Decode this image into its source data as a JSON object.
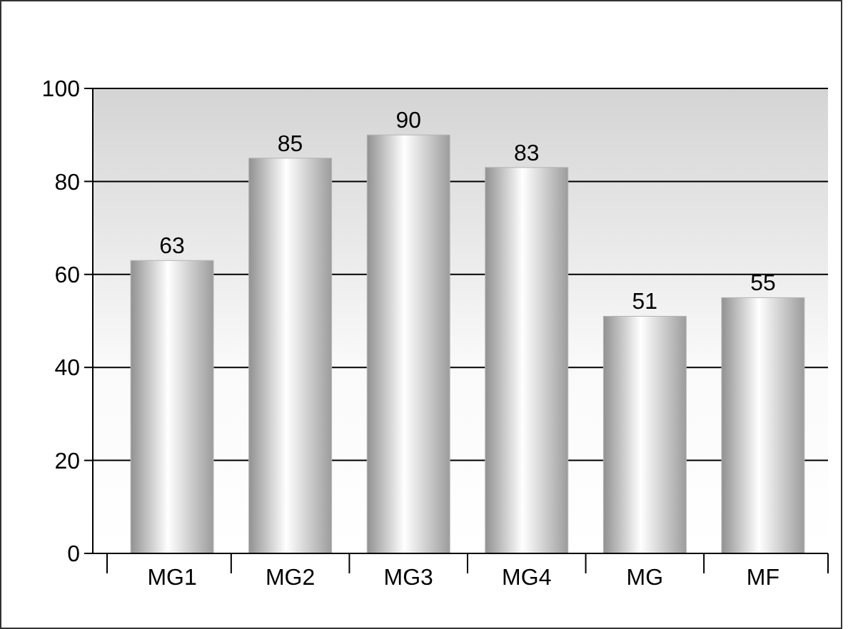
{
  "chart_data": {
    "type": "bar",
    "categories": [
      "MG1",
      "MG2",
      "MG3",
      "MG4",
      "MG",
      "MF"
    ],
    "values": [
      63,
      85,
      90,
      83,
      51,
      55
    ],
    "color": "#b4b4b4",
    "ylim": [
      0,
      100
    ],
    "yticks": [
      0,
      20,
      40,
      60,
      80,
      100
    ],
    "grid": "y",
    "data_labels": true
  }
}
